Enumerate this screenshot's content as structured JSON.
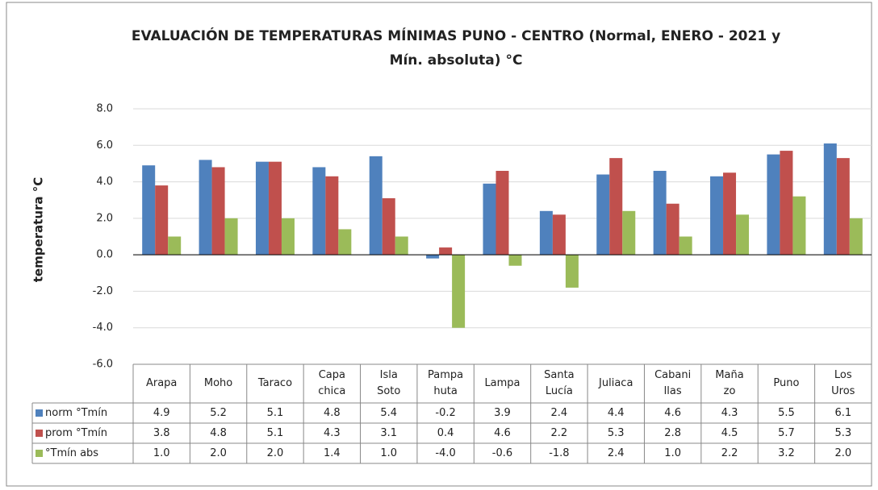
{
  "chart_data": {
    "type": "bar",
    "title": "EVALUACIÓN DE TEMPERATURAS MÍNIMAS PUNO - CENTRO (Normal, ENERO - 2021 y",
    "subtitle": "Mín. absoluta) °C",
    "y_label": "temperatura °C",
    "categories": [
      "Arapa",
      "Moho",
      "Taraco",
      "Capa\nchica",
      "Isla\nSoto",
      "Pampa\nhuta",
      "Lampa",
      "Santa\nLucía",
      "Juliaca",
      "Cabani\nllas",
      "Maña\nzo",
      "Puno",
      "Los\nUros"
    ],
    "series": [
      {
        "name": "norm °Tmín",
        "color": "#4f81bd",
        "values": [
          4.9,
          5.2,
          5.1,
          4.8,
          5.4,
          -0.2,
          3.9,
          2.4,
          4.4,
          4.6,
          4.3,
          5.5,
          6.1
        ],
        "value_labels": [
          "4.9",
          "5.2",
          "5.1",
          "4.8",
          "5.4",
          "-0.2",
          "3.9",
          "2.4",
          "4.4",
          "4.6",
          "4.3",
          "5.5",
          "6.1"
        ]
      },
      {
        "name": "prom °Tmín",
        "color": "#c0504d",
        "values": [
          3.8,
          4.8,
          5.1,
          4.3,
          3.1,
          0.4,
          4.6,
          2.2,
          5.3,
          2.8,
          4.5,
          5.7,
          5.3
        ],
        "value_labels": [
          "3.8",
          "4.8",
          "5.1",
          "4.3",
          "3.1",
          "0.4",
          "4.6",
          "2.2",
          "5.3",
          "2.8",
          "4.5",
          "5.7",
          "5.3"
        ]
      },
      {
        "name": "°Tmín abs",
        "color": "#9bbb59",
        "values": [
          1.0,
          2.0,
          2.0,
          1.4,
          1.0,
          -4.0,
          -0.6,
          -1.8,
          2.4,
          1.0,
          2.2,
          3.2,
          2.0
        ],
        "value_labels": [
          "1.0",
          "2.0",
          "2.0",
          "1.4",
          "1.0",
          "-4.0",
          "-0.6",
          "-1.8",
          "2.4",
          "1.0",
          "2.2",
          "3.2",
          "2.0"
        ]
      }
    ],
    "ylim": [
      -6,
      8
    ],
    "yticks": [
      {
        "value": -6,
        "label": "-6.0"
      },
      {
        "value": -4,
        "label": "-4.0"
      },
      {
        "value": -2,
        "label": "-2.0"
      },
      {
        "value": 0,
        "label": "0.0"
      },
      {
        "value": 2,
        "label": "2.0"
      },
      {
        "value": 4,
        "label": "4.0"
      },
      {
        "value": 6,
        "label": "6.0"
      },
      {
        "value": 8,
        "label": "8.0"
      }
    ],
    "grid": true
  }
}
